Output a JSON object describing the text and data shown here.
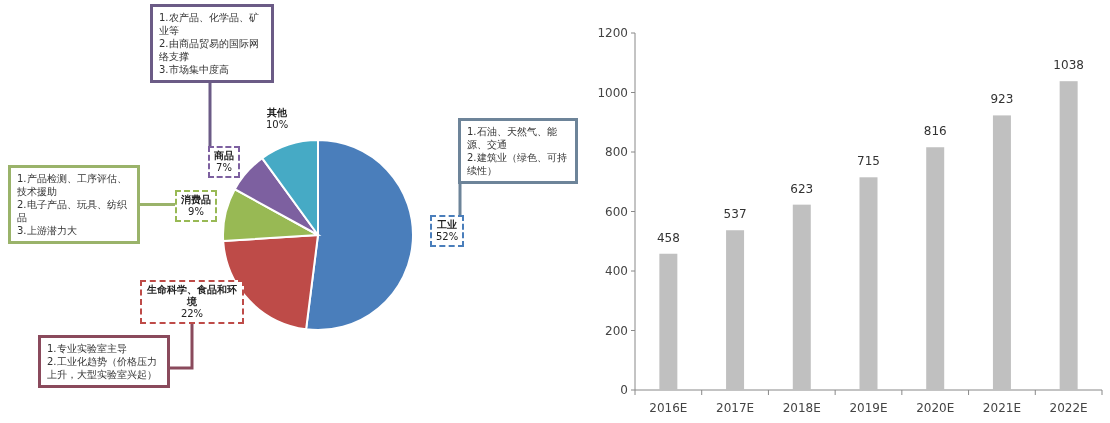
{
  "chart_data": [
    {
      "type": "pie",
      "categories": [
        "工业",
        "生命科学、食品和环境",
        "消费品",
        "商品",
        "其他"
      ],
      "values": [
        52,
        22,
        9,
        7,
        10
      ],
      "colors": [
        "#4a7ebb",
        "#be4b48",
        "#98b954",
        "#7d60a0",
        "#46aac5"
      ],
      "value_labels": [
        "52%",
        "22%",
        "9%",
        "7%",
        "10%"
      ],
      "annotations": [
        "1.石油、天然气、能源、交通\n2.建筑业（绿色、可持续性）",
        "1.专业实验室主导\n2.工业化趋势（价格压力上升，大型实验室兴起）",
        "1.产品检测、工序评估、技术援助\n2.电子产品、玩具、纺织品\n3.上游潜力大",
        "1.农产品、化学品、矿业等\n2.由商品贸易的国际网络支撑\n3.市场集中度高"
      ]
    },
    {
      "type": "bar",
      "categories": [
        "2016E",
        "2017E",
        "2018E",
        "2019E",
        "2020E",
        "2021E",
        "2022E"
      ],
      "values": [
        458,
        537,
        623,
        715,
        816,
        923,
        1038
      ],
      "color": "#c0c0c0",
      "ylim": [
        0,
        1200
      ],
      "yticks": [
        0,
        200,
        400,
        600,
        800,
        1000,
        1200
      ],
      "data_labels": true
    }
  ]
}
